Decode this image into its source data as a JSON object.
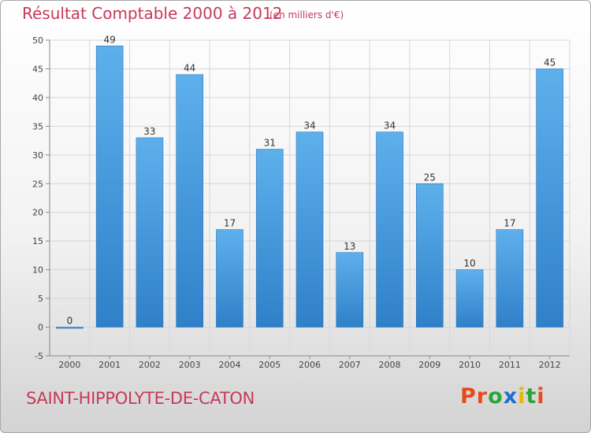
{
  "header": {
    "title": "Résultat Comptable 2000 à 2012",
    "unit": "(en milliers d'€)"
  },
  "footer": {
    "commune": "SAINT-HIPPOLYTE-DE-CATON",
    "logo_text": "Proxiti"
  },
  "colors": {
    "title": "#c8385a",
    "bar": "#4aa0e0",
    "logo_letters": [
      "#e84a1a",
      "#e84a1a",
      "#2aa63a",
      "#1e6fd0",
      "#e6b800",
      "#2aa63a",
      "#e84a1a"
    ]
  },
  "chart_data": {
    "type": "bar",
    "title": "Résultat Comptable 2000 à 2012",
    "subtitle": "(en milliers d'€)",
    "categories": [
      "2000",
      "2001",
      "2002",
      "2003",
      "2004",
      "2005",
      "2006",
      "2007",
      "2008",
      "2009",
      "2010",
      "2011",
      "2012"
    ],
    "values": [
      0,
      49,
      33,
      44,
      17,
      31,
      34,
      13,
      34,
      25,
      10,
      17,
      45
    ],
    "ylim": [
      -5,
      50
    ],
    "yticks": [
      -5,
      0,
      5,
      10,
      15,
      20,
      25,
      30,
      35,
      40,
      45,
      50
    ],
    "grid": true,
    "data_labels": true
  }
}
